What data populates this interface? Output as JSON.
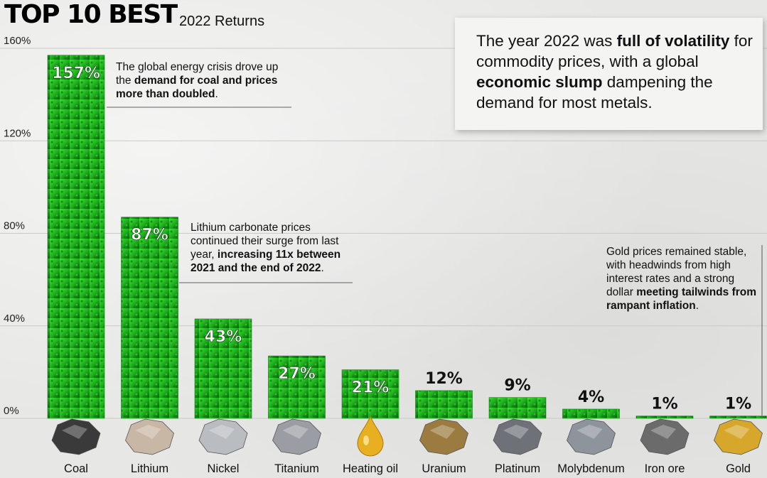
{
  "header": {
    "title": "TOP 10 BEST",
    "subtitle": "2022 Returns"
  },
  "callout": {
    "parts": [
      {
        "text": "The year 2022 was ",
        "bold": false
      },
      {
        "text": "full of volatility",
        "bold": true
      },
      {
        "text": " for commodity prices, with a global ",
        "bold": false
      },
      {
        "text": "economic slump",
        "bold": true
      },
      {
        "text": " dampening the demand for most metals.",
        "bold": false
      }
    ]
  },
  "annotations": [
    {
      "name": "annotation-coal",
      "parts": [
        {
          "text": "The global energy crisis drove up the ",
          "bold": false
        },
        {
          "text": "demand for coal and prices more than doubled",
          "bold": true
        },
        {
          "text": ".",
          "bold": false
        }
      ]
    },
    {
      "name": "annotation-lithium",
      "parts": [
        {
          "text": "Lithium carbonate prices continued their surge from last year, ",
          "bold": false
        },
        {
          "text": "increasing 11x between 2021 and the end of 2022",
          "bold": true
        },
        {
          "text": ".",
          "bold": false
        }
      ]
    },
    {
      "name": "annotation-gold",
      "parts": [
        {
          "text": "Gold prices remained stable, with headwinds from high interest rates and a strong dollar ",
          "bold": false
        },
        {
          "text": "meeting tailwinds from rampant inflation",
          "bold": true
        },
        {
          "text": ".",
          "bold": false
        }
      ]
    }
  ],
  "colors": {
    "bar": "#22b520",
    "bar_light": "#3ee23a",
    "bar_dark": "#0d5e10",
    "grid": "#c9c9c7"
  },
  "chart_data": {
    "type": "bar",
    "categories": [
      "Coal",
      "Lithium",
      "Nickel",
      "Titanium",
      "Heating oil",
      "Uranium",
      "Platinum",
      "Molybdenum",
      "Iron ore",
      "Gold"
    ],
    "values": [
      157,
      87,
      43,
      27,
      21,
      12,
      9,
      4,
      1,
      1
    ],
    "value_labels": [
      "157%",
      "87%",
      "43%",
      "27%",
      "21%",
      "12%",
      "9%",
      "4%",
      "1%",
      "1%"
    ],
    "yticks": [
      0,
      40,
      80,
      120,
      160
    ],
    "ytick_labels": [
      "0%",
      "40%",
      "80%",
      "120%",
      "160%"
    ],
    "ylim": [
      0,
      160
    ],
    "icons": [
      "coal-lump-icon",
      "lithium-ore-icon",
      "nickel-ore-icon",
      "titanium-ore-icon",
      "oil-drop-icon",
      "uranium-ore-icon",
      "platinum-ore-icon",
      "molybdenum-ore-icon",
      "iron-ore-icon",
      "gold-nugget-icon"
    ],
    "grid": true
  }
}
